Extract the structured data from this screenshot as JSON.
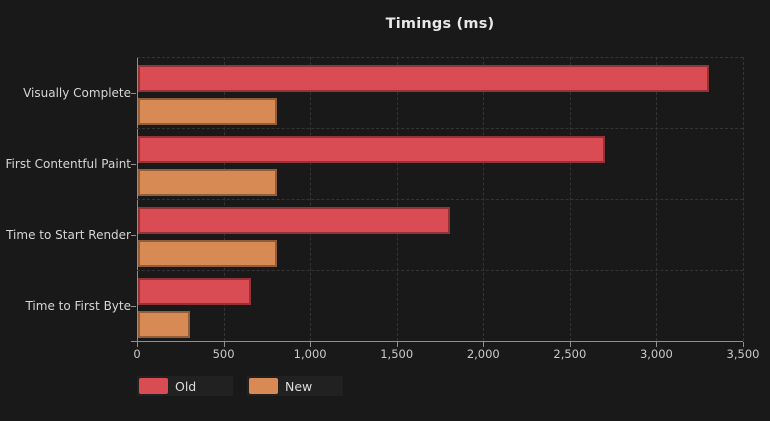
{
  "title": "Timings (ms)",
  "chart_data": {
    "type": "bar",
    "orientation": "horizontal",
    "title": "Timings (ms)",
    "categories": [
      "Visually Complete",
      "First Contentful Paint",
      "Time to Start Render",
      "Time to First Byte"
    ],
    "series": [
      {
        "name": "Old",
        "color": "#d94c53",
        "values": [
          3300,
          2700,
          1800,
          650
        ]
      },
      {
        "name": "New",
        "color": "#d78a54",
        "values": [
          800,
          800,
          800,
          300
        ]
      }
    ],
    "xlim": [
      0,
      3500
    ],
    "x_tick_step": 500,
    "x_tick_labels": [
      "0",
      "500",
      "1,000",
      "1,500",
      "2,000",
      "2,500",
      "3,000",
      "3,500"
    ],
    "grid": true,
    "grid_style": "dashed",
    "legend_position": "bottom-left",
    "background_color": "#191919",
    "axis_color": "#8f8f8f"
  }
}
